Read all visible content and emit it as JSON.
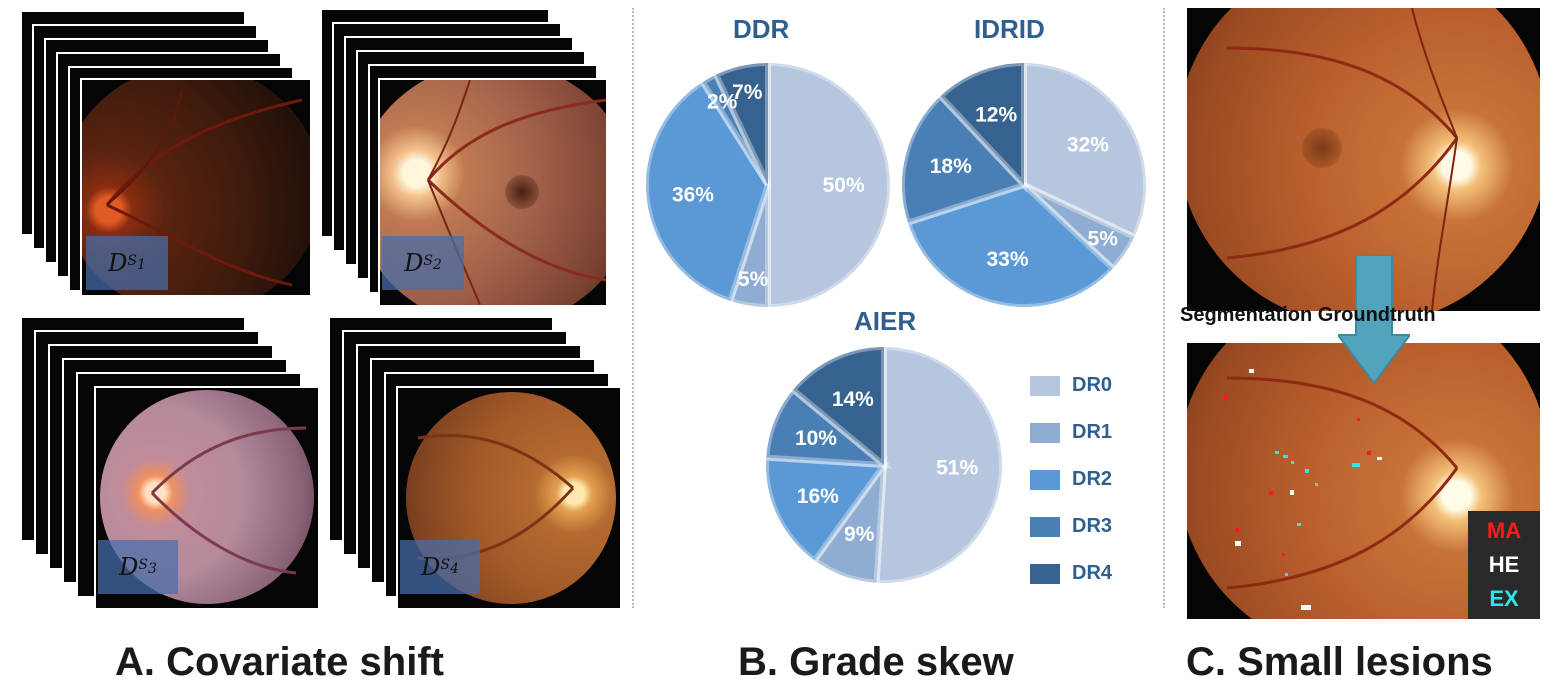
{
  "panel_a": {
    "caption": "A. Covariate shift",
    "domains": [
      {
        "base": "D",
        "sub_s": "S",
        "sub_n": "1"
      },
      {
        "base": "D",
        "sub_s": "S",
        "sub_n": "2"
      },
      {
        "base": "D",
        "sub_s": "S",
        "sub_n": "3"
      },
      {
        "base": "D",
        "sub_s": "S",
        "sub_n": "4"
      }
    ]
  },
  "panel_b": {
    "caption": "B. Grade skew",
    "legend": [
      "DR0",
      "DR1",
      "DR2",
      "DR3",
      "DR4"
    ],
    "colors": [
      "#b6c6df",
      "#8fadd2",
      "#5a98d6",
      "#4a7fb6",
      "#36628f"
    ]
  },
  "chart_data": [
    {
      "type": "pie",
      "title": "DDR",
      "categories": [
        "DR0",
        "DR1",
        "DR2",
        "DR3",
        "DR4"
      ],
      "values": [
        50,
        5,
        36,
        2,
        7
      ]
    },
    {
      "type": "pie",
      "title": "IDRID",
      "categories": [
        "DR0",
        "DR1",
        "DR2",
        "DR3",
        "DR4"
      ],
      "values": [
        32,
        5,
        33,
        18,
        12
      ]
    },
    {
      "type": "pie",
      "title": "AIER",
      "categories": [
        "DR0",
        "DR1",
        "DR2",
        "DR3",
        "DR4"
      ],
      "values": [
        51,
        9,
        16,
        10,
        14
      ]
    }
  ],
  "panel_c": {
    "caption": "C. Small lesions",
    "arrow_label": "Segmentation Groundtruth",
    "lesions": [
      {
        "label": "MA",
        "color": "#ff1a1a"
      },
      {
        "label": "HE",
        "color": "#ffffff"
      },
      {
        "label": "EX",
        "color": "#2ee6e6"
      }
    ]
  }
}
